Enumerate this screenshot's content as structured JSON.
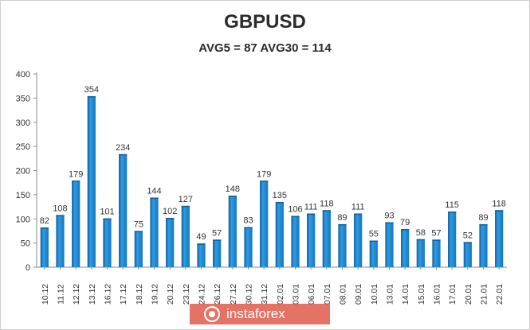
{
  "chart_data": {
    "type": "bar",
    "title": "GBPUSD",
    "subtitle": "AVG5 = 87 AVG30 = 114",
    "xlabel": "",
    "ylabel": "",
    "ylim": [
      0,
      400
    ],
    "yticks": [
      0,
      50,
      100,
      150,
      200,
      250,
      300,
      350,
      400
    ],
    "grid": false,
    "legend": "none",
    "categories": [
      "10.12",
      "11.12",
      "12.12",
      "13.12",
      "16.12",
      "17.12",
      "18.12",
      "19.12",
      "20.12",
      "23.12",
      "24.12",
      "26.12",
      "27.12",
      "30.12",
      "31.12",
      "02.01",
      "03.01",
      "06.01",
      "07.01",
      "08.01",
      "09.01",
      "10.01",
      "13.01",
      "14.01",
      "15.01",
      "16.01",
      "17.01",
      "20.01",
      "21.01",
      "22.01"
    ],
    "values": [
      82,
      108,
      179,
      354,
      101,
      234,
      75,
      144,
      102,
      127,
      49,
      57,
      148,
      83,
      179,
      135,
      106,
      111,
      118,
      89,
      111,
      55,
      93,
      79,
      58,
      57,
      115,
      52,
      89,
      118
    ],
    "colors": {
      "bar": "#1f8fd6",
      "bar_dark": "#0c5e9c",
      "axis": "#8a8a8a",
      "text": "#333333"
    }
  },
  "brand": {
    "name": "instaforex",
    "icon": "instaforex-logo-icon"
  }
}
